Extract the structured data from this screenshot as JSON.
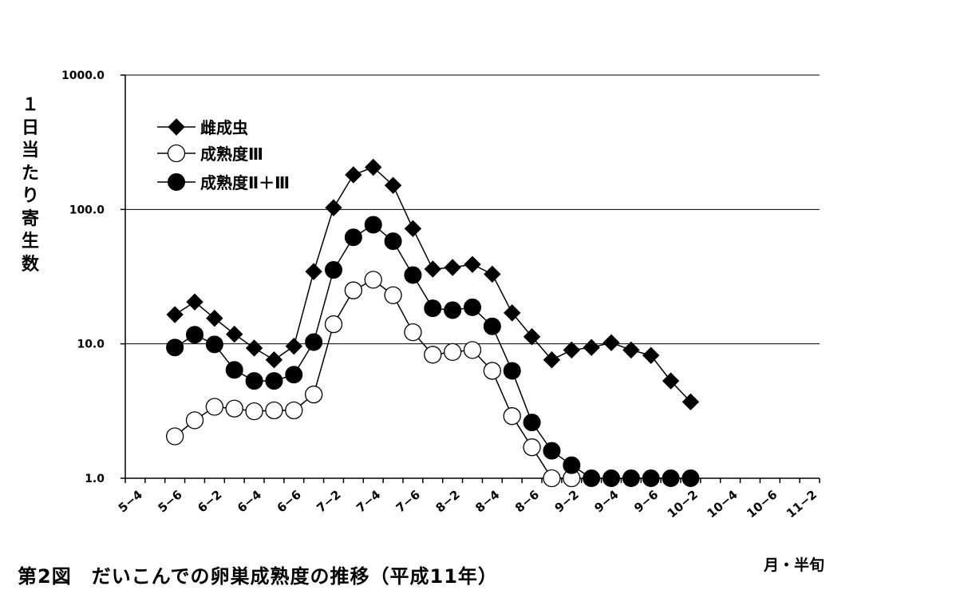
{
  "chart_data": {
    "type": "line",
    "y_scale": "log",
    "ylim": [
      1.0,
      1000.0
    ],
    "y_ticks": [
      "1.0",
      "10.0",
      "100.0",
      "1000.0"
    ],
    "y_tick_values": [
      1,
      10,
      100,
      1000
    ],
    "ylabel": "１日当たり寄生数",
    "xlabel": "月・半旬",
    "categories": [
      "5−4",
      "5−5",
      "5−6",
      "6−1",
      "6−2",
      "6−3",
      "6−4",
      "6−5",
      "6−6",
      "7−1",
      "7−2",
      "7−3",
      "7−4",
      "7−5",
      "7−6",
      "8−1",
      "8−2",
      "8−3",
      "8−4",
      "8−5",
      "8−6",
      "9−1",
      "9−2",
      "9−3",
      "9−4",
      "9−5",
      "9−6",
      "10−1",
      "10−2",
      "10−3",
      "10−4",
      "10−5",
      "10−6",
      "11−1",
      "11−2"
    ],
    "x_tick_labels": [
      "5−4",
      "5−6",
      "6−2",
      "6−4",
      "6−6",
      "7−2",
      "7−4",
      "7−6",
      "8−2",
      "8−4",
      "8−6",
      "9−2",
      "9−4",
      "9−6",
      "10−2",
      "10−4",
      "10−6",
      "11−2"
    ],
    "grid": "horizontal",
    "legend_position": "top-left",
    "title": "第2図　だいこんでの卵巣成熟度の推移（平成11年）",
    "series": [
      {
        "name": "雌成虫",
        "marker": "diamond",
        "color": "#000000",
        "values": [
          null,
          null,
          16.5,
          20.5,
          15.5,
          11.8,
          9.3,
          7.6,
          9.6,
          34.5,
          103,
          181,
          206,
          151,
          72,
          36,
          37,
          39,
          33,
          17,
          11.3,
          7.6,
          9,
          9.4,
          10.2,
          9,
          8.2,
          5.3,
          3.7,
          null,
          null,
          null,
          null,
          null,
          null
        ]
      },
      {
        "name": "成熟度Ⅲ",
        "marker": "open-circle",
        "color": "#000000",
        "values": [
          null,
          null,
          2.05,
          2.7,
          3.4,
          3.3,
          3.15,
          3.2,
          3.2,
          4.2,
          14,
          25,
          30,
          23,
          12.2,
          8.3,
          8.7,
          9,
          6.3,
          2.9,
          1.7,
          1,
          1,
          null,
          null,
          null,
          null,
          null,
          null,
          null,
          null,
          null,
          null,
          null,
          null
        ]
      },
      {
        "name": "成熟度Ⅱ＋Ⅲ",
        "marker": "filled-circle",
        "color": "#000000",
        "values": [
          null,
          null,
          9.4,
          11.7,
          9.9,
          6.4,
          5.3,
          5.3,
          5.9,
          10.3,
          35.5,
          62,
          77,
          58,
          32.5,
          18.4,
          17.8,
          18.7,
          13.5,
          6.3,
          2.6,
          1.6,
          1.25,
          1,
          1,
          1,
          1,
          1,
          1,
          null,
          null,
          null,
          null,
          null,
          null
        ]
      }
    ]
  }
}
